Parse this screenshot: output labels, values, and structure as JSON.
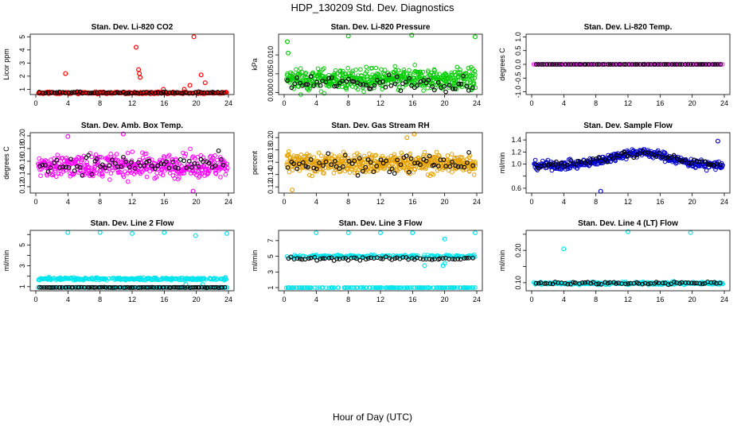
{
  "page": {
    "title": "HDP_130209  Std. Dev. Diagnostics",
    "xlabel": "Hour of Day (UTC)"
  },
  "chart_data": [
    {
      "type": "scatter",
      "title": "Stan. Dev. Li-820 CO2",
      "ylabel": "Licor ppm",
      "xlim": [
        0,
        24
      ],
      "ylim": [
        0.6,
        5.2
      ],
      "xticks": [
        0,
        4,
        8,
        12,
        16,
        20,
        24
      ],
      "yticks": [
        1,
        2,
        3,
        4,
        5
      ],
      "ytick_labels": [
        "1",
        "2",
        "3",
        "4",
        "5"
      ],
      "ytick_rotate": true,
      "color": "#ff0000",
      "base": 0.72,
      "spread": 0.08,
      "n": 260,
      "black_base": 0.75,
      "black_spread": 0.06,
      "outliers": [
        [
          3.7,
          2.2
        ],
        [
          12.5,
          4.2
        ],
        [
          12.8,
          2.5
        ],
        [
          12.9,
          2.2
        ],
        [
          13.0,
          1.9
        ],
        [
          19.7,
          5.0
        ],
        [
          19.2,
          1.3
        ],
        [
          20.6,
          2.1
        ],
        [
          21.1,
          1.5
        ],
        [
          15.9,
          1.0
        ],
        [
          18.5,
          1.0
        ]
      ]
    },
    {
      "type": "scatter",
      "title": "Stan. Dev. Li-820 Pressure",
      "ylabel": "kPa",
      "xlim": [
        0,
        24
      ],
      "ylim": [
        -0.0005,
        0.0155
      ],
      "xticks": [
        0,
        4,
        8,
        12,
        16,
        20,
        24
      ],
      "yticks": [
        0,
        0.005,
        0.01
      ],
      "ytick_labels": [
        "0.000",
        "0.005",
        "0.010"
      ],
      "ytick_rotate": true,
      "color": "#00cc00",
      "base": 0.0035,
      "spread": 0.0028,
      "n": 520,
      "black_base": 0.0025,
      "black_spread": 0.0022,
      "outliers": [
        [
          0.4,
          0.0135
        ],
        [
          8.0,
          0.015
        ],
        [
          15.9,
          0.0152
        ],
        [
          23.8,
          0.0148
        ],
        [
          0.5,
          0.0105
        ]
      ]
    },
    {
      "type": "scatter",
      "title": "Stan. Dev. Li-820 Temp.",
      "ylabel": "degrees C",
      "xlim": [
        0,
        24
      ],
      "ylim": [
        -1.1,
        1.1
      ],
      "xticks": [
        0,
        4,
        8,
        12,
        16,
        20,
        24
      ],
      "yticks": [
        -1,
        -0.5,
        0,
        0.5,
        1
      ],
      "ytick_labels": [
        "-1.0",
        "-0.5",
        "0.0",
        "0.5",
        "1.0"
      ],
      "ytick_rotate": true,
      "color": "#ff00ff",
      "base": 0,
      "spread": 0,
      "n": 140,
      "black_base": 0,
      "black_spread": 0,
      "black_n": 70,
      "outliers": []
    },
    {
      "type": "scatter",
      "title": "Stan. Dev. Amb. Box Temp.",
      "ylabel": "degrees C",
      "xlim": [
        0,
        24
      ],
      "ylim": [
        0.11,
        0.205
      ],
      "xticks": [
        0,
        4,
        8,
        12,
        16,
        20,
        24
      ],
      "yticks": [
        0.12,
        0.14,
        0.16,
        0.18,
        0.2
      ],
      "ytick_labels": [
        "0.12",
        "0.14",
        "0.16",
        "0.18",
        "0.20"
      ],
      "ytick_rotate": true,
      "color": "#ff00ff",
      "base": 0.153,
      "spread": 0.018,
      "n": 440,
      "black_base": 0.155,
      "black_spread": 0.014,
      "outliers": [
        [
          19.6,
          0.113
        ],
        [
          10.9,
          0.203
        ],
        [
          4.0,
          0.199
        ]
      ]
    },
    {
      "type": "scatter",
      "title": "Stan. Dev. Gas Stream RH",
      "ylabel": "percent",
      "xlim": [
        0,
        24
      ],
      "ylim": [
        0.11,
        0.208
      ],
      "xticks": [
        0,
        4,
        8,
        12,
        16,
        20,
        24
      ],
      "yticks": [
        0.12,
        0.14,
        0.16,
        0.18,
        0.2
      ],
      "ytick_labels": [
        "0.12",
        "0.14",
        "0.16",
        "0.18",
        "0.20"
      ],
      "ytick_rotate": true,
      "color": "#e6a000",
      "base": 0.158,
      "spread": 0.016,
      "n": 520,
      "black_base": 0.158,
      "black_spread": 0.016,
      "outliers": [
        [
          1.0,
          0.115
        ],
        [
          16.2,
          0.206
        ],
        [
          15.3,
          0.2
        ]
      ]
    },
    {
      "type": "scatter",
      "title": "Stan. Dev. Sample Flow",
      "ylabel": "ml/min",
      "xlim": [
        0,
        24
      ],
      "ylim": [
        0.52,
        1.52
      ],
      "xticks": [
        0,
        4,
        8,
        12,
        16,
        20,
        24
      ],
      "yticks": [
        0.6,
        0.8,
        1.0,
        1.2,
        1.4
      ],
      "ytick_labels": [
        "0.6",
        "",
        "1.0",
        "1.2",
        "1.4"
      ],
      "ytick_rotate": false,
      "color": "#0000cc",
      "base": 1.08,
      "spread": 0.07,
      "n": 420,
      "black_base": 1.12,
      "black_spread": 0.06,
      "trend": true,
      "outliers": [
        [
          8.6,
          0.55
        ],
        [
          23.2,
          1.38
        ]
      ]
    },
    {
      "type": "scatter",
      "title": "Stan. Dev. Line 2 Flow",
      "ylabel": "ml/min",
      "xlim": [
        0,
        24
      ],
      "ylim": [
        0.6,
        6.4
      ],
      "xticks": [
        0,
        4,
        8,
        12,
        16,
        20,
        24
      ],
      "yticks": [
        1,
        2,
        3,
        4,
        5,
        6
      ],
      "ytick_labels": [
        "1",
        "",
        "3",
        "",
        "5",
        ""
      ],
      "ytick_rotate": true,
      "color": "#00e5ee",
      "base": 1.75,
      "spread": 0.12,
      "n": 480,
      "black_base": 0.92,
      "black_spread": 0.02,
      "black_n": 90,
      "second_band": 0.92,
      "outliers": [
        [
          4.0,
          6.2
        ],
        [
          8.0,
          6.2
        ],
        [
          12.0,
          6.1
        ],
        [
          16.0,
          6.2
        ],
        [
          19.9,
          5.9
        ],
        [
          23.8,
          6.1
        ],
        [
          18.7,
          1.2
        ],
        [
          20.8,
          1.2
        ]
      ]
    },
    {
      "type": "scatter",
      "title": "Stan. Dev. Line 3 Flow",
      "ylabel": "ml/min",
      "xlim": [
        0,
        24
      ],
      "ylim": [
        0.6,
        8.3
      ],
      "xticks": [
        0,
        4,
        8,
        12,
        16,
        20,
        24
      ],
      "yticks": [
        1,
        3,
        5,
        7
      ],
      "ytick_labels": [
        "1",
        "3",
        "5",
        "7"
      ],
      "ytick_rotate": true,
      "color": "#00e5ee",
      "base": 5.0,
      "spread": 0.18,
      "n": 360,
      "black_base": 4.7,
      "black_spread": 0.2,
      "second_band": 1.0,
      "outliers": [
        [
          4.0,
          8.0
        ],
        [
          8.0,
          8.0
        ],
        [
          12.0,
          8.0
        ],
        [
          16.0,
          8.0
        ],
        [
          20.0,
          7.2
        ],
        [
          23.8,
          8.0
        ],
        [
          19.8,
          3.8
        ],
        [
          20.0,
          4.1
        ],
        [
          17.5,
          3.8
        ]
      ]
    },
    {
      "type": "scatter",
      "title": "Stan. Dev. Line 4 (LT) Flow",
      "ylabel": "ml/min",
      "xlim": [
        0,
        24
      ],
      "ylim": [
        0.075,
        0.262
      ],
      "xticks": [
        0,
        4,
        8,
        12,
        16,
        20,
        24
      ],
      "yticks": [
        0.1,
        0.15,
        0.2,
        0.25
      ],
      "ytick_labels": [
        "0.10",
        "",
        "0.20",
        ""
      ],
      "ytick_rotate": true,
      "color": "#00e5ee",
      "base": 0.098,
      "spread": 0.004,
      "n": 300,
      "black_base": 0.099,
      "black_spread": 0.004,
      "outliers": [
        [
          4.0,
          0.205
        ],
        [
          12.0,
          0.258
        ],
        [
          19.8,
          0.255
        ]
      ]
    }
  ]
}
